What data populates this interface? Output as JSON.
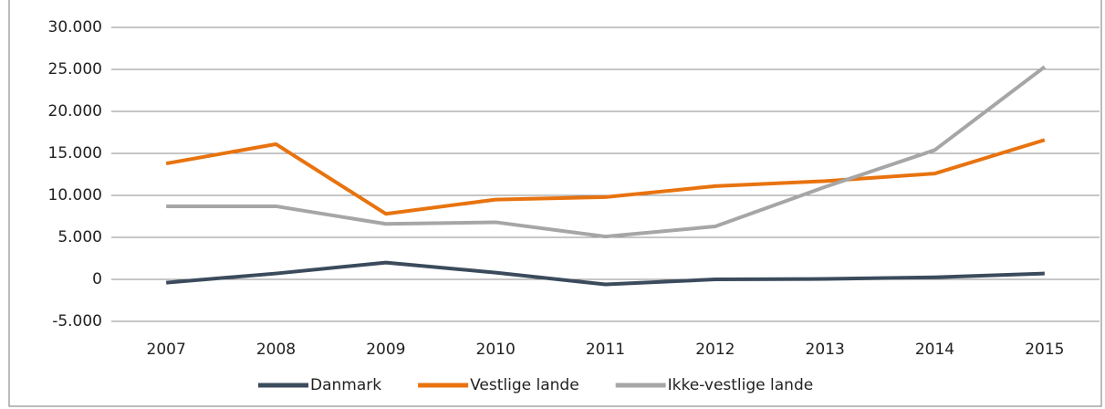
{
  "chart_data": {
    "type": "line",
    "categories": [
      "2007",
      "2008",
      "2009",
      "2010",
      "2011",
      "2012",
      "2013",
      "2014",
      "2015"
    ],
    "series": [
      {
        "name": "Danmark",
        "color": "#3b4b5c",
        "values": [
          -400,
          700,
          2000,
          800,
          -600,
          0,
          50,
          250,
          700
        ]
      },
      {
        "name": "Vestlige lande",
        "color": "#e8730f",
        "values": [
          13800,
          16100,
          7800,
          9500,
          9800,
          11100,
          11700,
          12600,
          16600
        ]
      },
      {
        "name": "Ikke-vestlige lande",
        "color": "#a6a6a6",
        "values": [
          8700,
          8700,
          6600,
          6800,
          5100,
          6300,
          11000,
          15400,
          25300
        ]
      }
    ],
    "ylim": [
      -5000,
      30000
    ],
    "yticks": [
      {
        "value": -5000,
        "label": "-5.000"
      },
      0,
      {
        "value": 5000,
        "label": "5.000"
      },
      {
        "value": 10000,
        "label": "10.000"
      },
      {
        "value": 15000,
        "label": "15.000"
      },
      {
        "value": 20000,
        "label": "20.000"
      },
      {
        "value": 25000,
        "label": "25.000"
      },
      {
        "value": 30000,
        "label": "30.000"
      }
    ],
    "grid": true,
    "legend": "bottom"
  }
}
